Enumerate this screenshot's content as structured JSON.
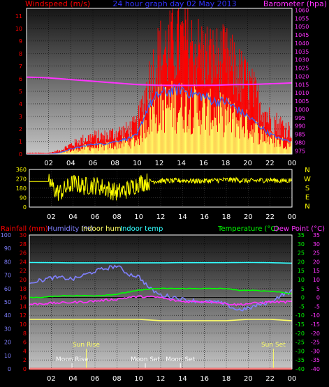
{
  "chart_data": [
    {
      "type": "line",
      "title": "24 hour graph day  02 May 2013",
      "left_axis_label": "Windspeed (m/s)",
      "right_axis_label": "Barometer (hpa)",
      "x_tick_labels": [
        "02",
        "04",
        "06",
        "08",
        "10",
        "12",
        "14",
        "16",
        "18",
        "20",
        "22",
        "00"
      ],
      "left_ticks": [
        0,
        1,
        2,
        3,
        4,
        5,
        6,
        7,
        8,
        9,
        10,
        11
      ],
      "right_ticks": [
        975,
        980,
        985,
        990,
        995,
        1000,
        1005,
        1010,
        1015,
        1020,
        1025,
        1030,
        1035,
        1040,
        1045,
        1050,
        1055,
        1060
      ],
      "ylim_left": [
        0,
        11.6
      ],
      "ylim_right": [
        973,
        1061
      ],
      "colors": {
        "gust": "#ff0000",
        "average": "#ffff66",
        "wind": "#3366ff",
        "barometer": "#ff33ff"
      },
      "series": [
        {
          "key": "barometer",
          "axis": "right",
          "x": [
            0,
            1,
            2,
            3,
            4,
            5,
            6,
            7,
            8,
            9,
            10,
            11,
            12,
            13,
            14,
            15,
            16,
            17,
            18,
            19,
            20,
            21,
            22,
            23,
            24
          ],
          "values": [
            1019.5,
            1019.3,
            1019,
            1018.5,
            1018,
            1017.5,
            1017,
            1016.5,
            1016,
            1015.5,
            1015,
            1014.8,
            1014.6,
            1014.5,
            1014.5,
            1014.5,
            1014.6,
            1014.6,
            1014.8,
            1015,
            1015,
            1015.2,
            1015.5,
            1015.7,
            1016
          ]
        },
        {
          "key": "gust",
          "axis": "left",
          "x": [
            0,
            1,
            2,
            3,
            4,
            5,
            6,
            7,
            8,
            9,
            10,
            11,
            12,
            13,
            14,
            15,
            16,
            17,
            18,
            19,
            20,
            21,
            22,
            23,
            24
          ],
          "values": [
            0.1,
            0.1,
            0.1,
            0.3,
            0.8,
            1.2,
            1.5,
            1.5,
            1.8,
            2.0,
            2.5,
            6.0,
            8.5,
            9.0,
            9.5,
            9.0,
            8.5,
            8.0,
            8.0,
            7.0,
            6.0,
            4.5,
            3.0,
            2.5,
            2.0
          ]
        },
        {
          "key": "wind",
          "axis": "left",
          "x": [
            0,
            1,
            2,
            3,
            4,
            5,
            6,
            7,
            8,
            9,
            10,
            11,
            12,
            13,
            14,
            15,
            16,
            17,
            18,
            19,
            20,
            21,
            22,
            23,
            24
          ],
          "values": [
            0,
            0,
            0,
            0.1,
            0.4,
            0.6,
            0.8,
            0.8,
            1.0,
            1.2,
            1.5,
            3.8,
            4.8,
            5.0,
            5.2,
            4.8,
            4.6,
            4.2,
            4.2,
            3.6,
            3.0,
            2.3,
            1.6,
            1.2,
            1.0
          ]
        },
        {
          "key": "average",
          "axis": "left",
          "x": [
            0,
            1,
            2,
            3,
            4,
            5,
            6,
            7,
            8,
            9,
            10,
            11,
            12,
            13,
            14,
            15,
            16,
            17,
            18,
            19,
            20,
            21,
            22,
            23,
            24
          ],
          "values": [
            0,
            0,
            0,
            0.1,
            0.3,
            0.5,
            0.6,
            0.6,
            0.8,
            1.0,
            1.2,
            3.0,
            3.8,
            4.0,
            4.0,
            3.8,
            3.6,
            3.4,
            3.2,
            2.8,
            2.4,
            1.8,
            1.3,
            1.0,
            0.8
          ]
        }
      ]
    },
    {
      "type": "line",
      "title": "",
      "right_axis_letters": [
        "N",
        "W",
        "S",
        "E",
        "N"
      ],
      "x_tick_labels": [
        "02",
        "04",
        "06",
        "08",
        "10",
        "12",
        "14",
        "16",
        "18",
        "20",
        "22",
        "00"
      ],
      "left_ticks": [
        0,
        90,
        180,
        270,
        360
      ],
      "ylim": [
        0,
        360
      ],
      "colors": {
        "direction": "#ffff00"
      },
      "series": [
        {
          "key": "direction",
          "x": [
            0,
            1,
            1.8,
            2.5,
            3,
            4,
            5,
            6,
            7,
            8,
            9,
            10,
            11,
            12,
            13,
            14,
            15,
            16,
            17,
            18,
            19,
            20,
            21,
            22,
            23,
            24
          ],
          "values": [
            245,
            245,
            245,
            140,
            150,
            230,
            200,
            210,
            180,
            140,
            170,
            230,
            245,
            250,
            250,
            255,
            250,
            250,
            255,
            260,
            260,
            250,
            255,
            260,
            250,
            258
          ]
        }
      ]
    },
    {
      "type": "line",
      "legend": [
        "Rainfall (mm)",
        "Humidity (%)",
        "Indoor hum",
        "Indoor temp",
        "Temperature (°C)",
        "Dew Point (°C)"
      ],
      "x_tick_labels": [
        "02",
        "04",
        "06",
        "08",
        "10",
        "12",
        "14",
        "16",
        "18",
        "20",
        "22",
        "00"
      ],
      "humidity_ticks": [
        0,
        10,
        20,
        30,
        40,
        50,
        60,
        70,
        80,
        90,
        100
      ],
      "rain_ticks": [
        0,
        2,
        4,
        6,
        8,
        10,
        12,
        14,
        16,
        18,
        20,
        22,
        24,
        26,
        28,
        30
      ],
      "temp_ticks": [
        -40,
        -35,
        -30,
        -25,
        -20,
        -15,
        -10,
        -5,
        0,
        5,
        10,
        15,
        20,
        25,
        30,
        35
      ],
      "ylim_humidity": [
        0,
        100
      ],
      "ylim_temp": [
        -40,
        35
      ],
      "ylim_rain": [
        0,
        30
      ],
      "annotations": [
        {
          "text": "Sun Rise",
          "x": 5.2
        },
        {
          "text": "Sun Set",
          "x": 22.3
        },
        {
          "text": "Moon Rise",
          "x": 3.9
        },
        {
          "text": "Moon Set",
          "x": 10.6
        },
        {
          "text": "Moon Set",
          "x": 13.8
        }
      ],
      "colors": {
        "humidity": "#8080ff",
        "indoor_hum": "#ffff66",
        "indoor_temp": "#33ffff",
        "temperature": "#00ff00",
        "dew_point": "#ff33ff",
        "rainfall": "#ff0000"
      },
      "series": [
        {
          "key": "indoor_temp",
          "axis": "temp",
          "x": [
            0,
            2,
            4,
            6,
            8,
            10,
            12,
            14,
            16,
            18,
            20,
            22,
            24
          ],
          "values": [
            19.6,
            19.5,
            19.4,
            19.4,
            19.4,
            19.4,
            19.4,
            19.5,
            19.5,
            19.5,
            19.6,
            19.5,
            19.2
          ]
        },
        {
          "key": "humidity",
          "axis": "humidity",
          "x": [
            0,
            1,
            2,
            3,
            4,
            5,
            6,
            7,
            8,
            9,
            10,
            11,
            12,
            13,
            14,
            15,
            16,
            17,
            18,
            19,
            20,
            21,
            22,
            23,
            24
          ],
          "values": [
            65,
            66,
            68,
            68,
            67,
            70,
            73,
            75,
            77,
            71,
            69,
            60,
            55,
            54,
            52,
            51,
            50,
            50,
            48,
            44,
            45,
            48,
            50,
            55,
            58
          ]
        },
        {
          "key": "temperature",
          "axis": "temp",
          "x": [
            0,
            1,
            2,
            3,
            4,
            5,
            6,
            7,
            8,
            9,
            10,
            11,
            12,
            13,
            14,
            15,
            16,
            17,
            18,
            19,
            20,
            21,
            22,
            23,
            24
          ],
          "values": [
            0,
            0,
            0.5,
            1,
            1,
            1,
            1,
            1.3,
            1.8,
            3,
            4,
            4.8,
            5,
            5,
            5,
            5,
            5,
            5,
            5,
            4,
            4,
            3.8,
            3.5,
            3,
            2
          ]
        },
        {
          "key": "dew_point",
          "axis": "temp",
          "x": [
            0,
            1,
            2,
            3,
            4,
            5,
            6,
            7,
            8,
            9,
            10,
            11,
            12,
            13,
            14,
            15,
            16,
            17,
            18,
            19,
            20,
            21,
            22,
            23,
            24
          ],
          "values": [
            -3.8,
            -3.5,
            -3.2,
            -3,
            -2.7,
            -2.5,
            -2,
            -1.5,
            -1,
            0,
            0.5,
            0.3,
            0,
            -1.5,
            -2.3,
            -2.3,
            -2.3,
            -2.5,
            -3.5,
            -4,
            -3.5,
            -3,
            -2.5,
            -2.5,
            -2.5
          ]
        },
        {
          "key": "indoor_hum",
          "axis": "humidity",
          "x": [
            0,
            2,
            4,
            6,
            8,
            10,
            12,
            14,
            16,
            18,
            20,
            22,
            24
          ],
          "values": [
            37,
            37,
            37,
            37,
            37,
            37,
            36,
            36,
            36,
            36,
            37,
            37,
            36
          ]
        },
        {
          "key": "rainfall",
          "axis": "rain",
          "x": [
            0,
            24
          ],
          "values": [
            0,
            0
          ]
        }
      ]
    }
  ]
}
